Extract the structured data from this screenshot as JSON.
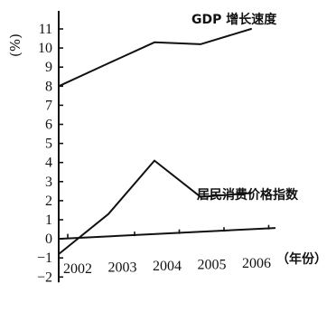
{
  "chart_data": {
    "type": "line",
    "x": [
      "2002",
      "2003",
      "2004",
      "2005",
      "2006"
    ],
    "xlabel": "（年份）",
    "ylabel": "(%)",
    "ylim": [
      -2,
      11
    ],
    "yticks": [
      -2,
      -1,
      0,
      1,
      2,
      3,
      4,
      5,
      6,
      7,
      8,
      9,
      10,
      11
    ],
    "grid": false,
    "legend": "inline labels near line ends",
    "series": [
      {
        "name": "GDP 增长速度",
        "values": [
          8.0,
          9.2,
          10.3,
          10.2,
          11.0
        ]
      },
      {
        "name": "居民消费价格指数",
        "values": [
          -0.8,
          1.3,
          4.1,
          2.2,
          2.4
        ]
      }
    ]
  }
}
